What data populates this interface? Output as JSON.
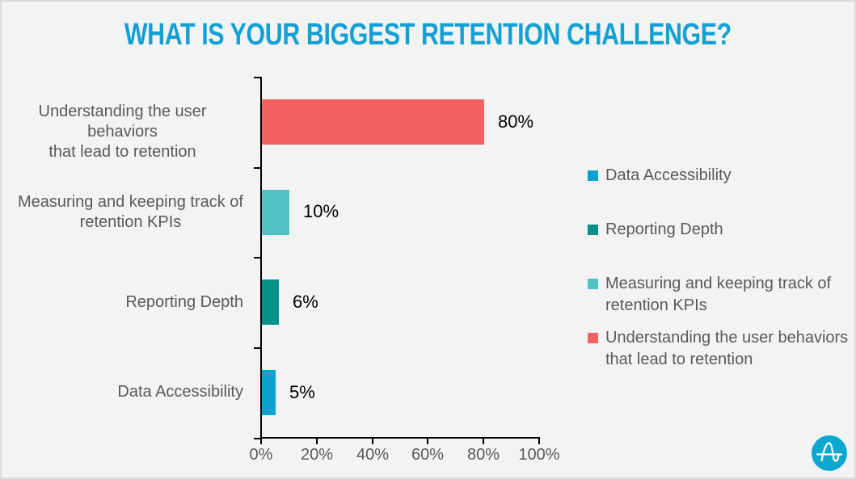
{
  "title": "WHAT IS YOUR BIGGEST RETENTION CHALLENGE?",
  "chart_data": {
    "type": "bar",
    "orientation": "horizontal",
    "title": "WHAT IS YOUR BIGGEST RETENTION CHALLENGE?",
    "categories": [
      "Understanding the user behaviors\nthat lead to retention",
      "Measuring and keeping track of\nretention KPIs",
      "Reporting Depth",
      "Data Accessibility"
    ],
    "values": [
      80,
      10,
      6,
      5
    ],
    "value_labels": [
      "80%",
      "10%",
      "6%",
      "5%"
    ],
    "bar_colors": [
      "#F2635F",
      "#4FC2C3",
      "#00918A",
      "#0BA2D0"
    ],
    "xlim": [
      0,
      100
    ],
    "x_tick_values": [
      0,
      20,
      40,
      60,
      80,
      100
    ],
    "x_tick_labels": [
      "0%",
      "20%",
      "40%",
      "60%",
      "80%",
      "100%"
    ],
    "grid": "off",
    "legend_position": "right",
    "legend": [
      {
        "label": "Data Accessibility",
        "color": "#0BA2D0"
      },
      {
        "label": "Reporting Depth",
        "color": "#00918A"
      },
      {
        "label": "Measuring and keeping track of\nretention KPIs",
        "color": "#4FC2C3"
      },
      {
        "label": "Understanding the user behaviors\nthat lead to retention",
        "color": "#F2635F"
      }
    ]
  },
  "colors": {
    "background": "#F2F4F3",
    "border": "#D8DBDA",
    "title": "#14A0D4",
    "label_text": "#595959",
    "value_text": "#000000",
    "axis": "#000000",
    "logo_circle": "#0BA7CF"
  },
  "logo": {
    "name": "amplitude-logo"
  }
}
